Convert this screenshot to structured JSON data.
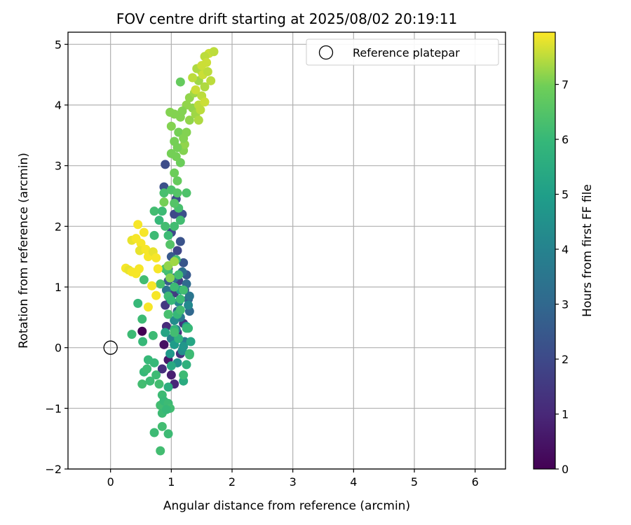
{
  "chart_data": {
    "type": "scatter",
    "title": "FOV centre drift starting at 2025/08/02 20:19:11",
    "xlabel": "Angular distance from reference (arcmin)",
    "ylabel": "Rotation from reference (arcmin)",
    "xlim": [
      -0.7,
      6.5
    ],
    "ylim": [
      -2.0,
      5.2
    ],
    "xticks": [
      0,
      1,
      2,
      3,
      4,
      5,
      6
    ],
    "yticks": [
      -2,
      -1,
      0,
      1,
      2,
      3,
      4,
      5
    ],
    "xtick_labels": [
      "0",
      "1",
      "2",
      "3",
      "4",
      "5",
      "6"
    ],
    "ytick_labels": [
      "−2",
      "−1",
      "0",
      "1",
      "2",
      "3",
      "4",
      "5"
    ],
    "grid": true,
    "legend": {
      "label": "Reference platepar",
      "placement": "top-right"
    },
    "reference_point": {
      "x": 0,
      "y": 0
    },
    "colorbar": {
      "label": "Hours from first FF file",
      "range": [
        0,
        7.95
      ],
      "ticks": [
        0,
        1,
        2,
        3,
        4,
        5,
        6,
        7
      ],
      "tick_labels": [
        "0",
        "1",
        "2",
        "3",
        "4",
        "5",
        "6",
        "7"
      ],
      "colormap": "viridis"
    },
    "points": [
      {
        "x": 0.52,
        "y": 0.27,
        "t": 0.0
      },
      {
        "x": 0.88,
        "y": 0.05,
        "t": 0.4
      },
      {
        "x": 0.95,
        "y": -0.2,
        "t": 0.6
      },
      {
        "x": 1.0,
        "y": -0.45,
        "t": 0.8
      },
      {
        "x": 1.05,
        "y": -0.6,
        "t": 1.0
      },
      {
        "x": 0.92,
        "y": 0.35,
        "t": 1.1
      },
      {
        "x": 1.1,
        "y": 0.25,
        "t": 1.2
      },
      {
        "x": 0.85,
        "y": -0.35,
        "t": 1.2
      },
      {
        "x": 1.15,
        "y": -0.1,
        "t": 1.3
      },
      {
        "x": 1.2,
        "y": 0.4,
        "t": 1.4
      },
      {
        "x": 0.9,
        "y": 0.7,
        "t": 1.5
      },
      {
        "x": 1.05,
        "y": 0.9,
        "t": 1.6
      },
      {
        "x": 1.12,
        "y": 1.1,
        "t": 1.7
      },
      {
        "x": 0.95,
        "y": 1.3,
        "t": 1.8
      },
      {
        "x": 1.1,
        "y": 1.6,
        "t": 1.9
      },
      {
        "x": 1.0,
        "y": 1.9,
        "t": 2.0
      },
      {
        "x": 1.05,
        "y": 2.2,
        "t": 2.0
      },
      {
        "x": 1.08,
        "y": 2.45,
        "t": 2.1
      },
      {
        "x": 0.9,
        "y": 3.02,
        "t": 2.1
      },
      {
        "x": 0.88,
        "y": 2.65,
        "t": 2.2
      },
      {
        "x": 1.18,
        "y": 2.2,
        "t": 2.2
      },
      {
        "x": 1.15,
        "y": 1.75,
        "t": 2.3
      },
      {
        "x": 1.2,
        "y": 1.4,
        "t": 2.4
      },
      {
        "x": 1.25,
        "y": 1.2,
        "t": 2.5
      },
      {
        "x": 1.0,
        "y": 1.5,
        "t": 2.5
      },
      {
        "x": 0.95,
        "y": 1.1,
        "t": 2.6
      },
      {
        "x": 1.22,
        "y": 0.95,
        "t": 2.7
      },
      {
        "x": 1.28,
        "y": 0.8,
        "t": 2.8
      },
      {
        "x": 1.1,
        "y": 0.6,
        "t": 2.8
      },
      {
        "x": 0.98,
        "y": 0.8,
        "t": 2.9
      },
      {
        "x": 1.3,
        "y": 0.6,
        "t": 3.0
      },
      {
        "x": 1.25,
        "y": 1.05,
        "t": 3.1
      },
      {
        "x": 1.18,
        "y": 1.25,
        "t": 3.2
      },
      {
        "x": 1.05,
        "y": 1.15,
        "t": 3.3
      },
      {
        "x": 0.92,
        "y": 0.95,
        "t": 3.4
      },
      {
        "x": 1.3,
        "y": 0.85,
        "t": 3.5
      },
      {
        "x": 1.15,
        "y": 0.5,
        "t": 3.6
      },
      {
        "x": 1.08,
        "y": 0.3,
        "t": 3.7
      },
      {
        "x": 1.22,
        "y": 0.1,
        "t": 3.8
      },
      {
        "x": 1.0,
        "y": 0.15,
        "t": 3.9
      },
      {
        "x": 0.95,
        "y": 0.55,
        "t": 4.0
      },
      {
        "x": 1.12,
        "y": 0.75,
        "t": 4.1
      },
      {
        "x": 1.28,
        "y": 0.7,
        "t": 4.2
      },
      {
        "x": 1.05,
        "y": 0.45,
        "t": 4.3
      },
      {
        "x": 1.18,
        "y": -0.05,
        "t": 4.4
      },
      {
        "x": 1.1,
        "y": -0.25,
        "t": 4.5
      },
      {
        "x": 1.3,
        "y": -0.1,
        "t": 4.6
      },
      {
        "x": 1.2,
        "y": 0.02,
        "t": 4.7
      },
      {
        "x": 0.98,
        "y": -0.1,
        "t": 4.8
      },
      {
        "x": 1.05,
        "y": 0.05,
        "t": 4.9
      },
      {
        "x": 1.25,
        "y": 0.35,
        "t": 5.0
      },
      {
        "x": 1.15,
        "y": 0.95,
        "t": 5.1
      },
      {
        "x": 0.9,
        "y": 0.25,
        "t": 5.2
      },
      {
        "x": 1.32,
        "y": 0.1,
        "t": 5.3
      },
      {
        "x": 1.0,
        "y": -0.3,
        "t": 5.4
      },
      {
        "x": 1.2,
        "y": -0.55,
        "t": 5.5
      },
      {
        "x": 0.95,
        "y": -0.65,
        "t": 5.6
      },
      {
        "x": 1.25,
        "y": -0.28,
        "t": 5.7
      },
      {
        "x": 1.12,
        "y": 0.15,
        "t": 5.8
      },
      {
        "x": 1.05,
        "y": 0.3,
        "t": 5.9
      },
      {
        "x": 1.28,
        "y": 0.32,
        "t": 6.0
      },
      {
        "x": 1.1,
        "y": 0.55,
        "t": 6.0
      },
      {
        "x": 0.95,
        "y": 0.85,
        "t": 6.1
      },
      {
        "x": 1.15,
        "y": 0.8,
        "t": 6.1
      },
      {
        "x": 1.3,
        "y": -0.12,
        "t": 6.2
      },
      {
        "x": 0.45,
        "y": 0.73,
        "t": 6.0
      },
      {
        "x": 0.35,
        "y": 0.22,
        "t": 6.1
      },
      {
        "x": 0.52,
        "y": 0.47,
        "t": 6.1
      },
      {
        "x": 0.53,
        "y": 0.1,
        "t": 6.0
      },
      {
        "x": 0.55,
        "y": 1.12,
        "t": 6.2
      },
      {
        "x": 0.7,
        "y": 0.2,
        "t": 6.1
      },
      {
        "x": 0.55,
        "y": -0.4,
        "t": 6.0
      },
      {
        "x": 0.6,
        "y": -0.35,
        "t": 6.1
      },
      {
        "x": 0.52,
        "y": -0.6,
        "t": 6.2
      },
      {
        "x": 0.65,
        "y": -0.55,
        "t": 6.1
      },
      {
        "x": 0.62,
        "y": -0.2,
        "t": 6.0
      },
      {
        "x": 0.75,
        "y": -0.45,
        "t": 6.1
      },
      {
        "x": 0.8,
        "y": -0.6,
        "t": 6.2
      },
      {
        "x": 0.72,
        "y": -0.25,
        "t": 6.0
      },
      {
        "x": 0.85,
        "y": -0.78,
        "t": 6.1
      },
      {
        "x": 0.82,
        "y": -0.95,
        "t": 6.2
      },
      {
        "x": 0.88,
        "y": -0.88,
        "t": 6.0
      },
      {
        "x": 0.95,
        "y": -0.92,
        "t": 6.1
      },
      {
        "x": 0.98,
        "y": -1.0,
        "t": 6.2
      },
      {
        "x": 0.85,
        "y": -1.08,
        "t": 6.1
      },
      {
        "x": 0.92,
        "y": -1.02,
        "t": 6.0
      },
      {
        "x": 0.72,
        "y": -1.4,
        "t": 6.1
      },
      {
        "x": 0.85,
        "y": -1.3,
        "t": 6.2
      },
      {
        "x": 0.95,
        "y": -1.42,
        "t": 6.1
      },
      {
        "x": 0.82,
        "y": -1.7,
        "t": 6.2
      },
      {
        "x": 1.05,
        "y": 0.25,
        "t": 6.2
      },
      {
        "x": 1.2,
        "y": -0.45,
        "t": 6.1
      },
      {
        "x": 1.25,
        "y": 0.32,
        "t": 6.0
      },
      {
        "x": 1.3,
        "y": -0.1,
        "t": 6.1
      },
      {
        "x": 1.15,
        "y": 0.62,
        "t": 6.2
      },
      {
        "x": 1.0,
        "y": 0.78,
        "t": 6.0
      },
      {
        "x": 1.05,
        "y": 1.0,
        "t": 6.1
      },
      {
        "x": 1.12,
        "y": 1.2,
        "t": 6.2
      },
      {
        "x": 0.95,
        "y": 1.25,
        "t": 6.1
      },
      {
        "x": 1.08,
        "y": 1.45,
        "t": 6.2
      },
      {
        "x": 0.72,
        "y": 1.85,
        "t": 6.1
      },
      {
        "x": 0.72,
        "y": 2.25,
        "t": 6.2
      },
      {
        "x": 0.8,
        "y": 2.1,
        "t": 6.0
      },
      {
        "x": 0.85,
        "y": 2.25,
        "t": 6.1
      },
      {
        "x": 0.9,
        "y": 2.0,
        "t": 6.2
      },
      {
        "x": 0.95,
        "y": 1.85,
        "t": 6.1
      },
      {
        "x": 1.05,
        "y": 2.0,
        "t": 6.2
      },
      {
        "x": 1.15,
        "y": 2.1,
        "t": 6.2
      },
      {
        "x": 1.12,
        "y": 2.3,
        "t": 6.3
      },
      {
        "x": 0.88,
        "y": 2.55,
        "t": 6.3
      },
      {
        "x": 1.0,
        "y": 2.6,
        "t": 6.4
      },
      {
        "x": 1.25,
        "y": 2.55,
        "t": 6.4
      },
      {
        "x": 1.1,
        "y": 2.55,
        "t": 6.5
      },
      {
        "x": 1.05,
        "y": 2.38,
        "t": 6.5
      },
      {
        "x": 0.98,
        "y": 1.7,
        "t": 6.5
      },
      {
        "x": 0.82,
        "y": 1.05,
        "t": 6.3
      },
      {
        "x": 0.9,
        "y": 1.3,
        "t": 6.3
      },
      {
        "x": 1.2,
        "y": 0.95,
        "t": 6.2
      },
      {
        "x": 0.95,
        "y": 0.55,
        "t": 6.3
      },
      {
        "x": 1.15,
        "y": 4.38,
        "t": 6.8
      },
      {
        "x": 1.1,
        "y": 2.75,
        "t": 6.8
      },
      {
        "x": 1.05,
        "y": 2.88,
        "t": 6.9
      },
      {
        "x": 1.15,
        "y": 3.05,
        "t": 6.9
      },
      {
        "x": 1.0,
        "y": 3.2,
        "t": 7.0
      },
      {
        "x": 1.05,
        "y": 3.4,
        "t": 7.0
      },
      {
        "x": 1.12,
        "y": 3.55,
        "t": 7.0
      },
      {
        "x": 1.2,
        "y": 3.25,
        "t": 7.1
      },
      {
        "x": 1.08,
        "y": 3.15,
        "t": 7.0
      },
      {
        "x": 1.0,
        "y": 3.65,
        "t": 7.1
      },
      {
        "x": 1.15,
        "y": 3.8,
        "t": 7.1
      },
      {
        "x": 1.25,
        "y": 3.55,
        "t": 7.1
      },
      {
        "x": 1.3,
        "y": 3.75,
        "t": 7.2
      },
      {
        "x": 1.35,
        "y": 3.95,
        "t": 7.2
      },
      {
        "x": 1.25,
        "y": 4.0,
        "t": 7.2
      },
      {
        "x": 1.18,
        "y": 3.9,
        "t": 7.1
      },
      {
        "x": 0.98,
        "y": 3.88,
        "t": 7.1
      },
      {
        "x": 1.05,
        "y": 3.85,
        "t": 7.1
      },
      {
        "x": 1.3,
        "y": 4.12,
        "t": 7.2
      },
      {
        "x": 1.4,
        "y": 3.85,
        "t": 7.3
      },
      {
        "x": 1.22,
        "y": 3.35,
        "t": 7.2
      },
      {
        "x": 1.1,
        "y": 3.3,
        "t": 7.0
      },
      {
        "x": 1.2,
        "y": 3.45,
        "t": 7.1
      },
      {
        "x": 1.38,
        "y": 4.2,
        "t": 7.3
      },
      {
        "x": 1.45,
        "y": 4.4,
        "t": 7.3
      },
      {
        "x": 1.5,
        "y": 4.55,
        "t": 7.4
      },
      {
        "x": 1.42,
        "y": 4.6,
        "t": 7.4
      },
      {
        "x": 1.35,
        "y": 4.45,
        "t": 7.5
      },
      {
        "x": 1.55,
        "y": 4.3,
        "t": 7.4
      },
      {
        "x": 1.5,
        "y": 4.15,
        "t": 7.5
      },
      {
        "x": 1.45,
        "y": 4.0,
        "t": 7.5
      },
      {
        "x": 1.4,
        "y": 4.25,
        "t": 7.6
      },
      {
        "x": 1.52,
        "y": 4.5,
        "t": 7.6
      },
      {
        "x": 1.6,
        "y": 4.55,
        "t": 7.5
      },
      {
        "x": 1.55,
        "y": 4.05,
        "t": 7.6
      },
      {
        "x": 1.48,
        "y": 3.92,
        "t": 7.5
      },
      {
        "x": 1.65,
        "y": 4.4,
        "t": 7.5
      },
      {
        "x": 1.45,
        "y": 3.75,
        "t": 7.4
      },
      {
        "x": 1.62,
        "y": 4.85,
        "t": 7.6
      },
      {
        "x": 1.7,
        "y": 4.88,
        "t": 7.5
      },
      {
        "x": 1.55,
        "y": 4.8,
        "t": 7.5
      },
      {
        "x": 1.5,
        "y": 4.65,
        "t": 7.6
      },
      {
        "x": 1.58,
        "y": 4.7,
        "t": 7.6
      },
      {
        "x": 0.88,
        "y": 2.4,
        "t": 7.0
      },
      {
        "x": 0.95,
        "y": 1.35,
        "t": 7.2
      },
      {
        "x": 1.05,
        "y": 1.42,
        "t": 7.3
      },
      {
        "x": 0.98,
        "y": 1.15,
        "t": 7.1
      },
      {
        "x": 0.45,
        "y": 2.03,
        "t": 7.9
      },
      {
        "x": 0.55,
        "y": 1.9,
        "t": 7.9
      },
      {
        "x": 0.35,
        "y": 1.77,
        "t": 7.8
      },
      {
        "x": 0.42,
        "y": 1.8,
        "t": 7.9
      },
      {
        "x": 0.5,
        "y": 1.72,
        "t": 7.9
      },
      {
        "x": 0.48,
        "y": 1.6,
        "t": 7.8
      },
      {
        "x": 0.58,
        "y": 1.62,
        "t": 7.9
      },
      {
        "x": 0.62,
        "y": 1.5,
        "t": 7.9
      },
      {
        "x": 0.7,
        "y": 1.58,
        "t": 7.8
      },
      {
        "x": 0.75,
        "y": 1.48,
        "t": 7.9
      },
      {
        "x": 0.78,
        "y": 1.3,
        "t": 7.9
      },
      {
        "x": 0.25,
        "y": 1.31,
        "t": 7.9
      },
      {
        "x": 0.3,
        "y": 1.28,
        "t": 7.8
      },
      {
        "x": 0.35,
        "y": 1.25,
        "t": 7.9
      },
      {
        "x": 0.42,
        "y": 1.22,
        "t": 7.9
      },
      {
        "x": 0.47,
        "y": 1.3,
        "t": 7.9
      },
      {
        "x": 0.68,
        "y": 1.02,
        "t": 7.9
      },
      {
        "x": 0.62,
        "y": 0.67,
        "t": 7.9
      },
      {
        "x": 0.75,
        "y": 0.86,
        "t": 7.9
      }
    ]
  }
}
